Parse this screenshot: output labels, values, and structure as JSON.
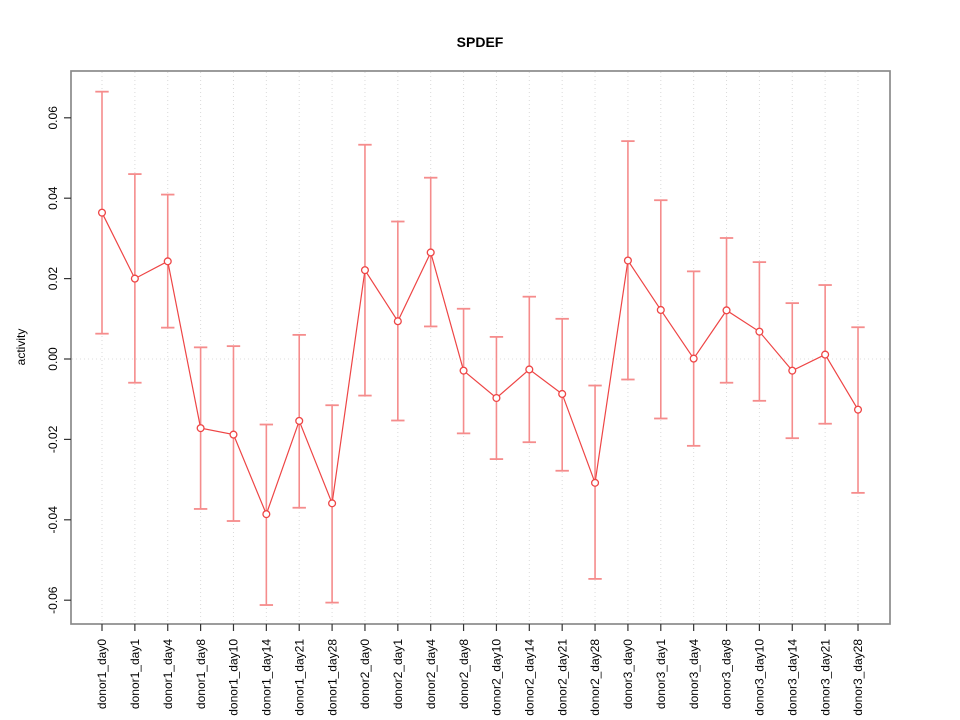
{
  "title": "SPDEF",
  "colors": {
    "series_red": "#ee4545",
    "error_bar_red": "#f58c8c",
    "plot_box_gray": "#8a8a8a",
    "grid_gray": "#dadada",
    "zero_line_gray": "#dedede",
    "tick_gray": "#333333",
    "background": "#ffffff"
  },
  "chart_data": {
    "type": "line",
    "title": "SPDEF",
    "xlabel": "",
    "ylabel": "activity",
    "ylim": [
      -0.065,
      0.072
    ],
    "yticks": [
      {
        "value": 0.06,
        "label": "0.06"
      },
      {
        "value": 0.04,
        "label": "0.04"
      },
      {
        "value": 0.02,
        "label": "0.02"
      },
      {
        "value": 0.0,
        "label": "0.00"
      },
      {
        "value": -0.02,
        "label": "-0.02"
      },
      {
        "value": -0.04,
        "label": "-0.04"
      },
      {
        "value": -0.06,
        "label": "-0.06"
      }
    ],
    "grid": "vertical dotted gridline at each category; horizontal dotted line at y=0; no legend",
    "marker": "open-circle",
    "categories": [
      "donor1_day0",
      "donor1_day1",
      "donor1_day4",
      "donor1_day8",
      "donor1_day10",
      "donor1_day14",
      "donor1_day21",
      "donor1_day28",
      "donor2_day0",
      "donor2_day1",
      "donor2_day4",
      "donor2_day8",
      "donor2_day10",
      "donor2_day14",
      "donor2_day21",
      "donor2_day28",
      "donor3_day0",
      "donor3_day1",
      "donor3_day4",
      "donor3_day8",
      "donor3_day10",
      "donor3_day14",
      "donor3_day21",
      "donor3_day28"
    ],
    "series": [
      {
        "name": "activity",
        "values": [
          0.0364,
          0.02,
          0.0243,
          -0.0172,
          -0.0188,
          -0.0386,
          -0.0154,
          -0.0359,
          0.0221,
          0.0094,
          0.0265,
          -0.0029,
          -0.0097,
          -0.0026,
          -0.0087,
          -0.0308,
          0.0245,
          0.0122,
          0.0001,
          0.0121,
          0.0068,
          -0.0029,
          0.0011,
          -0.0126
        ],
        "lower": [
          0.0063,
          -0.0059,
          0.0078,
          -0.0373,
          -0.0403,
          -0.0612,
          -0.037,
          -0.0606,
          -0.0091,
          -0.0153,
          0.0081,
          -0.0185,
          -0.0249,
          -0.0207,
          -0.0278,
          -0.0547,
          -0.0051,
          -0.0148,
          -0.0216,
          -0.0059,
          -0.0104,
          -0.0197,
          -0.0161,
          -0.0333
        ],
        "upper": [
          0.0665,
          0.046,
          0.0409,
          0.0029,
          0.0032,
          -0.0163,
          0.006,
          -0.0115,
          0.0533,
          0.0342,
          0.0451,
          0.0125,
          0.0055,
          0.0155,
          0.01,
          -0.0066,
          0.0542,
          0.0395,
          0.0218,
          0.0301,
          0.0241,
          0.0139,
          0.0184,
          0.0079
        ]
      }
    ]
  }
}
